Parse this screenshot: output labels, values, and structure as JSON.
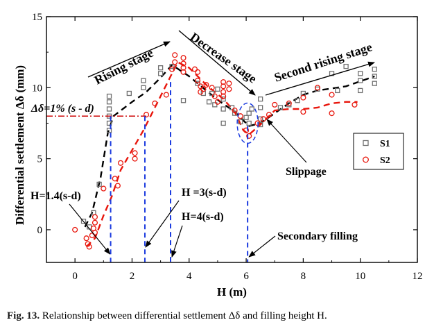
{
  "chart_data": {
    "type": "scatter",
    "xlabel": "H (m)",
    "ylabel": "Differential settlement Δδ (mm)",
    "xlim": [
      -1,
      12
    ],
    "ylim": [
      -2.3,
      15
    ],
    "xticks": [
      0,
      2,
      4,
      6,
      8,
      10,
      12
    ],
    "yticks": [
      0,
      5,
      10,
      15
    ],
    "grid": false,
    "legend_position": "right",
    "series": [
      {
        "name": "S1",
        "marker": "square",
        "color": "#707070",
        "points": [
          [
            0.3,
            0.6
          ],
          [
            0.5,
            0.2
          ],
          [
            0.65,
            1.2
          ],
          [
            0.85,
            3.2
          ],
          [
            1.2,
            7.0
          ],
          [
            1.2,
            7.5
          ],
          [
            1.2,
            8.0
          ],
          [
            1.2,
            8.5
          ],
          [
            1.2,
            9.0
          ],
          [
            1.2,
            9.4
          ],
          [
            1.9,
            9.6
          ],
          [
            2.4,
            10.0
          ],
          [
            2.4,
            10.5
          ],
          [
            3.0,
            11.0
          ],
          [
            3.0,
            11.4
          ],
          [
            3.4,
            11.5
          ],
          [
            3.8,
            9.1
          ],
          [
            4.3,
            10.3
          ],
          [
            4.5,
            9.6
          ],
          [
            4.7,
            9.0
          ],
          [
            4.8,
            9.6
          ],
          [
            4.9,
            8.8
          ],
          [
            5.0,
            9.9
          ],
          [
            5.2,
            8.5
          ],
          [
            5.2,
            7.5
          ],
          [
            5.2,
            9.2
          ],
          [
            5.5,
            8.6
          ],
          [
            5.6,
            8.2
          ],
          [
            5.8,
            7.6
          ],
          [
            6.0,
            7.9
          ],
          [
            6.1,
            8.2
          ],
          [
            6.1,
            7.5
          ],
          [
            6.2,
            8.5
          ],
          [
            6.5,
            7.8
          ],
          [
            6.5,
            8.6
          ],
          [
            6.5,
            9.2
          ],
          [
            6.5,
            7.4
          ],
          [
            7.2,
            8.6
          ],
          [
            7.5,
            8.8
          ],
          [
            7.8,
            9.1
          ],
          [
            8.0,
            9.6
          ],
          [
            8.5,
            9.9
          ],
          [
            9.0,
            11.0
          ],
          [
            9.2,
            9.8
          ],
          [
            9.5,
            11.5
          ],
          [
            10.0,
            11.0
          ],
          [
            10.0,
            10.5
          ],
          [
            10.0,
            9.8
          ],
          [
            10.5,
            11.3
          ],
          [
            10.5,
            10.8
          ],
          [
            10.5,
            10.3
          ]
        ]
      },
      {
        "name": "S2",
        "marker": "circle",
        "color": "#e8160c",
        "points": [
          [
            0.0,
            0.0
          ],
          [
            0.4,
            -0.6
          ],
          [
            0.45,
            -1.0
          ],
          [
            0.5,
            -1.2
          ],
          [
            0.6,
            -0.4
          ],
          [
            0.65,
            0.1
          ],
          [
            0.7,
            -0.2
          ],
          [
            0.7,
            0.5
          ],
          [
            0.7,
            0.9
          ],
          [
            1.0,
            2.9
          ],
          [
            1.4,
            3.6
          ],
          [
            1.5,
            3.1
          ],
          [
            1.6,
            4.7
          ],
          [
            2.1,
            5.0
          ],
          [
            2.1,
            5.4
          ],
          [
            2.5,
            8.1
          ],
          [
            2.8,
            8.9
          ],
          [
            3.2,
            9.5
          ],
          [
            3.4,
            11.3
          ],
          [
            3.5,
            11.8
          ],
          [
            3.5,
            12.3
          ],
          [
            3.8,
            12.1
          ],
          [
            3.8,
            11.7
          ],
          [
            3.8,
            11.4
          ],
          [
            3.8,
            11.1
          ],
          [
            4.2,
            11.3
          ],
          [
            4.3,
            11.1
          ],
          [
            4.3,
            10.5
          ],
          [
            4.4,
            10.1
          ],
          [
            4.4,
            9.7
          ],
          [
            4.5,
            9.9
          ],
          [
            4.6,
            10.2
          ],
          [
            4.8,
            10.0
          ],
          [
            4.9,
            9.4
          ],
          [
            5.0,
            9.0
          ],
          [
            5.2,
            10.4
          ],
          [
            5.2,
            10.1
          ],
          [
            5.2,
            9.7
          ],
          [
            5.2,
            9.4
          ],
          [
            5.4,
            10.3
          ],
          [
            5.4,
            9.9
          ],
          [
            5.6,
            8.4
          ],
          [
            5.8,
            8.0
          ],
          [
            6.0,
            7.0
          ],
          [
            6.1,
            6.6
          ],
          [
            6.4,
            7.5
          ],
          [
            6.6,
            7.8
          ],
          [
            6.8,
            8.1
          ],
          [
            7.0,
            8.8
          ],
          [
            7.5,
            8.9
          ],
          [
            8.0,
            9.3
          ],
          [
            8.0,
            8.3
          ],
          [
            8.5,
            10.0
          ],
          [
            9.0,
            9.5
          ],
          [
            9.0,
            8.2
          ],
          [
            9.8,
            8.8
          ]
        ]
      }
    ],
    "trend_lines": [
      {
        "series": "S1",
        "style": "dashed",
        "color": "#000000",
        "points": [
          [
            0.35,
            0.2
          ],
          [
            0.6,
            1.2
          ],
          [
            0.9,
            3.7
          ],
          [
            1.15,
            6.8
          ],
          [
            1.35,
            8.0
          ],
          [
            2.0,
            9.0
          ],
          [
            2.5,
            9.7
          ],
          [
            3.0,
            10.7
          ],
          [
            3.4,
            11.6
          ],
          [
            4.0,
            10.8
          ],
          [
            4.6,
            9.8
          ],
          [
            5.1,
            9.0
          ],
          [
            5.6,
            8.3
          ],
          [
            6.1,
            7.3
          ],
          [
            6.5,
            7.5
          ],
          [
            7.0,
            8.2
          ],
          [
            7.5,
            8.9
          ],
          [
            8.0,
            9.5
          ],
          [
            8.5,
            9.8
          ],
          [
            9.5,
            10.1
          ],
          [
            10.5,
            10.8
          ]
        ]
      },
      {
        "series": "S2",
        "style": "dashed",
        "color": "#e8160c",
        "points": [
          [
            0.4,
            -1.2
          ],
          [
            0.7,
            -0.6
          ],
          [
            1.0,
            1.0
          ],
          [
            1.3,
            2.4
          ],
          [
            1.6,
            4.2
          ],
          [
            2.0,
            5.6
          ],
          [
            2.4,
            7.0
          ],
          [
            2.9,
            9.0
          ],
          [
            3.3,
            10.6
          ],
          [
            3.6,
            11.8
          ],
          [
            4.0,
            11.4
          ],
          [
            4.6,
            10.2
          ],
          [
            5.2,
            9.2
          ],
          [
            5.6,
            8.3
          ],
          [
            5.9,
            7.0
          ],
          [
            6.1,
            6.7
          ],
          [
            6.5,
            7.4
          ],
          [
            7.0,
            8.4
          ],
          [
            7.5,
            8.5
          ],
          [
            8.0,
            8.5
          ],
          [
            8.5,
            8.6
          ],
          [
            9.0,
            8.9
          ],
          [
            9.5,
            9.0
          ],
          [
            9.9,
            9.0
          ]
        ]
      }
    ],
    "threshold": {
      "y": 8.0,
      "label": "Δδ=1% (s - d)",
      "color": "#cc0000",
      "style": "dash-dot"
    },
    "vertical_markers": [
      {
        "x": 1.25,
        "label": "H=1.4(s-d)"
      },
      {
        "x": 2.45,
        "label": "H =3(s-d)"
      },
      {
        "x": 3.35,
        "label": "H=4(s-d)"
      },
      {
        "x": 6.05,
        "label": "Secondary filling"
      }
    ],
    "stage_labels": [
      "Rising stage",
      "Decrease stage",
      "Second rising stage"
    ],
    "annotations": [
      "Slippage"
    ]
  },
  "caption": {
    "fig_number": "Fig. 13.",
    "text": "Relationship between differential settlement Δδ and filling height H."
  }
}
